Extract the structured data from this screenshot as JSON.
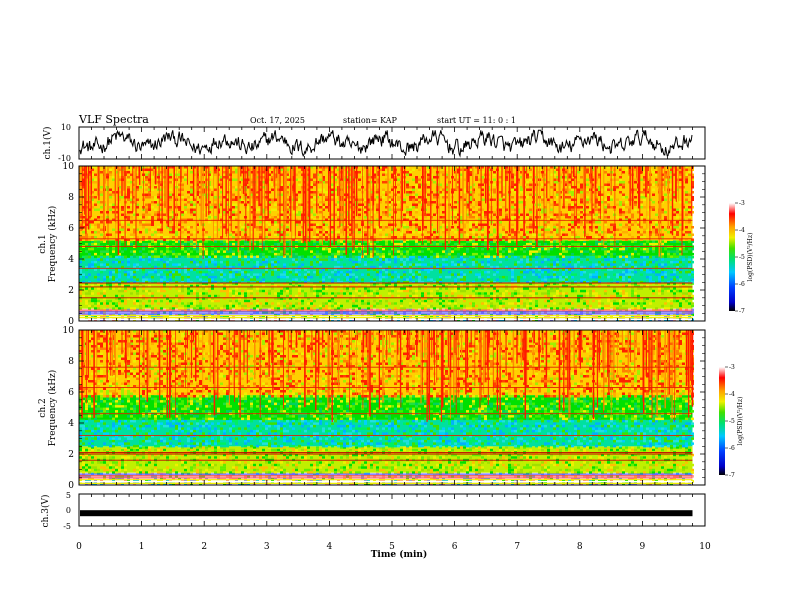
{
  "header": {
    "title": "VLF Spectra",
    "date": "Oct. 17, 2025",
    "station": "station= KAP",
    "start": "start  UT =   11: 0  : 1"
  },
  "chart_data": [
    {
      "type": "line",
      "name": "ch1-waveform",
      "ylabel": "ch.1(V)",
      "ylim": [
        -10,
        10
      ],
      "y_ticks": [
        "10",
        "-10"
      ],
      "xlim": [
        0,
        10
      ],
      "description_values": "noisy waveform between about -8 and 8 V over 0-9.8 min"
    },
    {
      "type": "heatmap",
      "name": "ch1-spectrogram",
      "ylabel_line1": "ch.1",
      "ylabel_line2": "Frequency (kHz)",
      "ylim": [
        0,
        10
      ],
      "y_ticks": [
        "0",
        "2",
        "4",
        "6",
        "8",
        "10"
      ],
      "xlim": [
        0,
        10
      ],
      "data_end_min": 9.8,
      "bands_khz": [
        [
          0,
          0.8,
          "mixed"
        ],
        [
          0.8,
          2.5,
          "yellow-green"
        ],
        [
          2.5,
          4.2,
          "green-cyan"
        ],
        [
          4.2,
          5.2,
          "green"
        ],
        [
          5.2,
          10,
          "yellow-red"
        ]
      ],
      "lines_khz": [
        0.6,
        1.5,
        2.2,
        2.45,
        3.4,
        4.8,
        5.3,
        6.5
      ]
    },
    {
      "type": "heatmap",
      "name": "ch2-spectrogram",
      "ylabel_line1": "ch.2",
      "ylabel_line2": "Frequency (kHz)",
      "ylim": [
        0,
        10
      ],
      "y_ticks": [
        "0",
        "2",
        "4",
        "6",
        "8",
        "10"
      ],
      "xlim": [
        0,
        10
      ],
      "data_end_min": 9.8,
      "bands_khz": [
        [
          0,
          0.8,
          "mixed"
        ],
        [
          0.8,
          2.5,
          "yellow-green"
        ],
        [
          2.5,
          4.2,
          "green-cyan"
        ],
        [
          4.2,
          5.8,
          "green"
        ],
        [
          5.8,
          10,
          "yellow-red"
        ]
      ],
      "lines_khz": [
        0.6,
        1.6,
        2.0,
        2.1,
        3.2,
        4.6,
        6.3,
        7.6
      ]
    },
    {
      "type": "line",
      "name": "ch3-waveform",
      "ylabel": "ch.3(V)",
      "ylim": [
        -5,
        5
      ],
      "y_ticks": [
        "5",
        "0",
        "-5"
      ],
      "xlim": [
        0,
        10
      ],
      "level_v": -1,
      "xlabel": "Time  (min)",
      "x_ticks": [
        "0",
        "1",
        "2",
        "3",
        "4",
        "5",
        "6",
        "7",
        "8",
        "9",
        "10"
      ]
    }
  ],
  "colorbar": {
    "label": "log(PSD)(V²/Hz)",
    "ticks": [
      "-3",
      "-4",
      "-5",
      "-6",
      "-7"
    ],
    "range": [
      -7,
      -3
    ]
  }
}
